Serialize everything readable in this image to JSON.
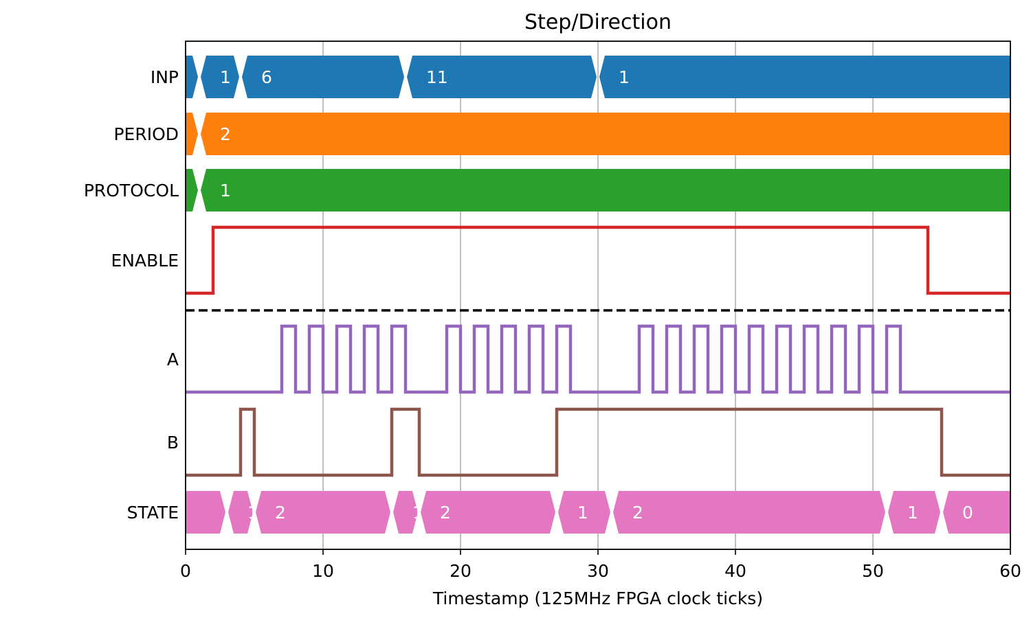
{
  "chart_data": {
    "type": "timing-diagram",
    "title": "Step/Direction",
    "xlabel": "Timestamp (125MHz FPGA clock ticks)",
    "xlim": [
      0,
      60
    ],
    "xticks": [
      0,
      10,
      20,
      30,
      40,
      50,
      60
    ],
    "grid": "vertical",
    "separator_after": "ENABLE",
    "signals": [
      {
        "name": "INP",
        "kind": "bus",
        "color": "#1f77b4",
        "segments": [
          {
            "start": 0,
            "end": 1,
            "label": ""
          },
          {
            "start": 1,
            "end": 4,
            "label": "1"
          },
          {
            "start": 4,
            "end": 16,
            "label": "6"
          },
          {
            "start": 16,
            "end": 30,
            "label": "11"
          },
          {
            "start": 30,
            "end": 60,
            "label": "1"
          }
        ]
      },
      {
        "name": "PERIOD",
        "kind": "bus",
        "color": "#ff7f0e",
        "segments": [
          {
            "start": 0,
            "end": 1,
            "label": ""
          },
          {
            "start": 1,
            "end": 60,
            "label": "2"
          }
        ]
      },
      {
        "name": "PROTOCOL",
        "kind": "bus",
        "color": "#2ca02c",
        "segments": [
          {
            "start": 0,
            "end": 1,
            "label": ""
          },
          {
            "start": 1,
            "end": 60,
            "label": "1"
          }
        ]
      },
      {
        "name": "ENABLE",
        "kind": "bit",
        "color": "#d62728",
        "initial": 0,
        "transitions": [
          2,
          54
        ]
      },
      {
        "name": "A",
        "kind": "bit",
        "color": "#9467bd",
        "initial": 0,
        "transitions": [
          7,
          8,
          9,
          10,
          11,
          12,
          13,
          14,
          15,
          16,
          19,
          20,
          21,
          22,
          23,
          24,
          25,
          26,
          27,
          28,
          33,
          34,
          35,
          36,
          37,
          38,
          39,
          40,
          41,
          42,
          43,
          44,
          45,
          46,
          47,
          48,
          49,
          50,
          51,
          52
        ]
      },
      {
        "name": "B",
        "kind": "bit",
        "color": "#8c564b",
        "initial": 0,
        "transitions": [
          4,
          5,
          15,
          17,
          27,
          55
        ]
      },
      {
        "name": "STATE",
        "kind": "bus",
        "color": "#e377c2",
        "segments": [
          {
            "start": 0,
            "end": 3,
            "label": ""
          },
          {
            "start": 3,
            "end": 5,
            "label": "1"
          },
          {
            "start": 5,
            "end": 15,
            "label": "2"
          },
          {
            "start": 15,
            "end": 17,
            "label": "1"
          },
          {
            "start": 17,
            "end": 27,
            "label": "2"
          },
          {
            "start": 27,
            "end": 31,
            "label": "1"
          },
          {
            "start": 31,
            "end": 51,
            "label": "2"
          },
          {
            "start": 51,
            "end": 55,
            "label": "1"
          },
          {
            "start": 55,
            "end": 60,
            "label": "0"
          }
        ]
      }
    ]
  }
}
